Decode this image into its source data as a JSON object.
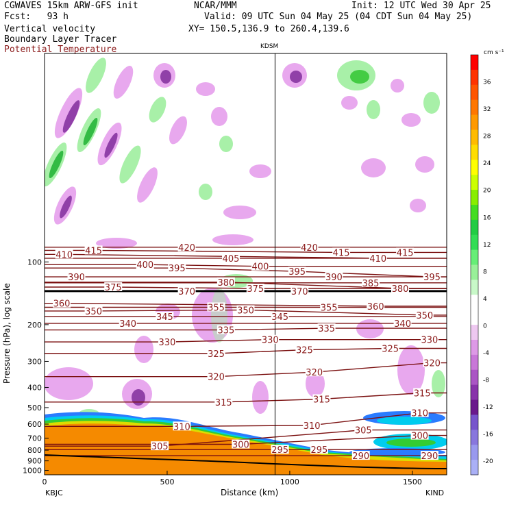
{
  "header": {
    "left_line1": "CGWAVES 15km ARW-GFS init",
    "left_line2": "Fcst:   93 h",
    "center_line1": "NCAR/MMM",
    "init": "Init: 12 UTC Wed 30 Apr 25",
    "valid": "Valid: 09 UTC Sun 04 May 25 (04 CDT Sun 04 May 25)",
    "xy": "XY= 150.5,136.9 to 260.4,139.6",
    "field1": "Vertical velocity",
    "field2": "Boundary Layer Tracer",
    "field3": "Potential Temperature"
  },
  "colors": {
    "theta_lines": "#7a0f0f",
    "theta_label": "#8b1a1a",
    "terrain_fill": "#f58a00",
    "pbl_blue": "#2a7bff",
    "pbl_cyan": "#00ccee",
    "pbl_green": "#33cc33",
    "pbl_yellow": "#dddd00",
    "w_pos_light": "#a8f0a8",
    "w_pos_mid": "#44cc44",
    "w_neg_light": "#e8a8ee",
    "w_neg_mid": "#b060c0",
    "w_neg_dark": "#7a1a8a"
  },
  "chart_data": {
    "type": "contour-cross-section",
    "station_marker": "KDSM",
    "xlabel": "Distance (km)",
    "ylabel": "Pressure (hPa), log scale",
    "x_ticks": [
      "0",
      "500",
      "1000",
      "1500"
    ],
    "x_tick_values": [
      0,
      500,
      1000,
      1500
    ],
    "xlim": [
      0,
      1640
    ],
    "x_left_station": "KBJC",
    "x_right_station": "KIND",
    "station_marker_x": 940,
    "y_ticks": [
      "100",
      "200",
      "300",
      "400",
      "500",
      "600",
      "700",
      "800",
      "900",
      "1000"
    ],
    "y_tick_values": [
      100,
      200,
      300,
      400,
      500,
      600,
      700,
      800,
      900,
      1000
    ],
    "ylim": [
      1050,
      10
    ],
    "y_scale": "log",
    "colorbar": {
      "unit": "cm s⁻¹",
      "labels": [
        "36",
        "32",
        "28",
        "24",
        "20",
        "16",
        "12",
        "8",
        "4",
        "0",
        "-4",
        "-8",
        "-12",
        "-16",
        "-20"
      ],
      "label_values": [
        36,
        32,
        28,
        24,
        20,
        16,
        12,
        8,
        4,
        0,
        -4,
        -8,
        -12,
        -16,
        -20
      ],
      "range": [
        -22,
        40
      ],
      "colors": [
        "#ff0000",
        "#ff3300",
        "#ff5500",
        "#ff7700",
        "#ff9900",
        "#ffbb00",
        "#ffdd00",
        "#ffff00",
        "#ccff00",
        "#88ee00",
        "#44dd22",
        "#22cc44",
        "#33dd55",
        "#66ee77",
        "#99f099",
        "#c8f8c8",
        "#ffffff",
        "#ffffff",
        "#eec8f0",
        "#dd99e6",
        "#c877d8",
        "#aa55c4",
        "#8833aa",
        "#6a1a8c",
        "#7755cc",
        "#8877dd",
        "#9999ee",
        "#aab0f6"
      ]
    },
    "theta_labels": [
      {
        "v": "420",
        "x": 580,
        "p": 85
      },
      {
        "v": "420",
        "x": 1080,
        "p": 85
      },
      {
        "v": "415",
        "x": 200,
        "p": 88
      },
      {
        "v": "415",
        "x": 1210,
        "p": 90
      },
      {
        "v": "415",
        "x": 1470,
        "p": 90
      },
      {
        "v": "410",
        "x": 80,
        "p": 92
      },
      {
        "v": "410",
        "x": 1360,
        "p": 96
      },
      {
        "v": "405",
        "x": 760,
        "p": 96
      },
      {
        "v": "400",
        "x": 410,
        "p": 103
      },
      {
        "v": "400",
        "x": 880,
        "p": 105
      },
      {
        "v": "395",
        "x": 540,
        "p": 107
      },
      {
        "v": "395",
        "x": 1030,
        "p": 111
      },
      {
        "v": "395",
        "x": 1580,
        "p": 118
      },
      {
        "v": "390",
        "x": 130,
        "p": 118
      },
      {
        "v": "390",
        "x": 1180,
        "p": 118
      },
      {
        "v": "385",
        "x": 1330,
        "p": 126
      },
      {
        "v": "380",
        "x": 740,
        "p": 125
      },
      {
        "v": "380",
        "x": 1450,
        "p": 134
      },
      {
        "v": "375",
        "x": 280,
        "p": 132
      },
      {
        "v": "375",
        "x": 860,
        "p": 134
      },
      {
        "v": "370",
        "x": 580,
        "p": 138
      },
      {
        "v": "370",
        "x": 1040,
        "p": 138
      },
      {
        "v": "360",
        "x": 70,
        "p": 158
      },
      {
        "v": "360",
        "x": 1350,
        "p": 163
      },
      {
        "v": "355",
        "x": 700,
        "p": 165
      },
      {
        "v": "355",
        "x": 1160,
        "p": 165
      },
      {
        "v": "350",
        "x": 200,
        "p": 172
      },
      {
        "v": "350",
        "x": 820,
        "p": 170
      },
      {
        "v": "350",
        "x": 1550,
        "p": 180
      },
      {
        "v": "345",
        "x": 490,
        "p": 183
      },
      {
        "v": "345",
        "x": 960,
        "p": 183
      },
      {
        "v": "340",
        "x": 340,
        "p": 197
      },
      {
        "v": "340",
        "x": 1460,
        "p": 197
      },
      {
        "v": "335",
        "x": 740,
        "p": 212
      },
      {
        "v": "335",
        "x": 1150,
        "p": 208
      },
      {
        "v": "330",
        "x": 500,
        "p": 242
      },
      {
        "v": "330",
        "x": 920,
        "p": 236
      },
      {
        "v": "330",
        "x": 1570,
        "p": 236
      },
      {
        "v": "325",
        "x": 700,
        "p": 275
      },
      {
        "v": "325",
        "x": 1060,
        "p": 264
      },
      {
        "v": "325",
        "x": 1410,
        "p": 260
      },
      {
        "v": "320",
        "x": 700,
        "p": 355
      },
      {
        "v": "320",
        "x": 1100,
        "p": 338
      },
      {
        "v": "320",
        "x": 1580,
        "p": 305
      },
      {
        "v": "315",
        "x": 730,
        "p": 470
      },
      {
        "v": "315",
        "x": 1130,
        "p": 455
      },
      {
        "v": "315",
        "x": 1540,
        "p": 425
      },
      {
        "v": "310",
        "x": 560,
        "p": 615
      },
      {
        "v": "310",
        "x": 1090,
        "p": 608
      },
      {
        "v": "310",
        "x": 1530,
        "p": 530
      },
      {
        "v": "305",
        "x": 470,
        "p": 765
      },
      {
        "v": "305",
        "x": 1300,
        "p": 640
      },
      {
        "v": "300",
        "x": 800,
        "p": 750
      },
      {
        "v": "300",
        "x": 1530,
        "p": 680
      },
      {
        "v": "295",
        "x": 960,
        "p": 795
      },
      {
        "v": "295",
        "x": 1120,
        "p": 795
      },
      {
        "v": "290",
        "x": 1290,
        "p": 850
      },
      {
        "v": "290",
        "x": 1570,
        "p": 850
      }
    ]
  }
}
